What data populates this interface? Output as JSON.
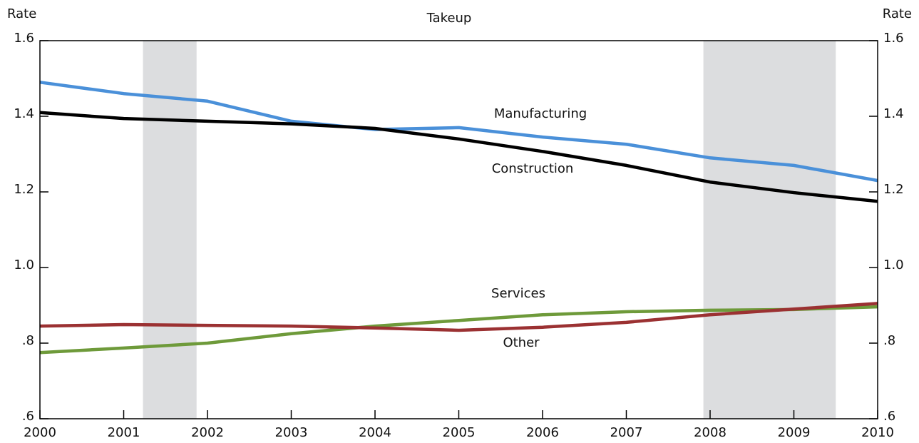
{
  "chart_data": {
    "type": "line",
    "title": "Takeup",
    "y_label": "Rate",
    "y2_label": "Rate",
    "x": [
      2000,
      2001,
      2002,
      2003,
      2004,
      2005,
      2006,
      2007,
      2008,
      2009,
      2010
    ],
    "xlim": [
      2000,
      2010
    ],
    "xticks": [
      2000,
      2001,
      2002,
      2003,
      2004,
      2005,
      2006,
      2007,
      2008,
      2009,
      2010
    ],
    "ylim": [
      0.6,
      1.6
    ],
    "yticks": [
      {
        "value": 0.6,
        "label": ".6"
      },
      {
        "value": 0.8,
        "label": ".8"
      },
      {
        "value": 1.0,
        "label": "1.0"
      },
      1.2,
      1.4,
      1.6
    ],
    "y2lim": [
      0.6,
      1.6
    ],
    "y2ticks": [
      {
        "value": 0.6,
        "label": ".6"
      },
      {
        "value": 0.8,
        "label": ".8"
      },
      {
        "value": 1.0,
        "label": "1.0"
      },
      1.2,
      1.4,
      1.6
    ],
    "shaded_periods": [
      [
        2001.23,
        2001.87
      ],
      [
        2007.92,
        2009.5
      ]
    ],
    "shade_color": "#dcdddf",
    "series": [
      {
        "name": "Manufacturing",
        "color": "#4a90d9",
        "values": [
          1.49,
          1.46,
          1.44,
          1.387,
          1.365,
          1.37,
          1.345,
          1.326,
          1.29,
          1.27,
          1.23
        ]
      },
      {
        "name": "Construction",
        "color": "#000000",
        "values": [
          1.41,
          1.394,
          1.387,
          1.38,
          1.368,
          1.34,
          1.307,
          1.27,
          1.226,
          1.198,
          1.175
        ]
      },
      {
        "name": "Services",
        "color": "#6e9a3a",
        "values": [
          0.775,
          0.787,
          0.8,
          0.825,
          0.845,
          0.86,
          0.875,
          0.883,
          0.887,
          0.889,
          0.896
        ]
      },
      {
        "name": "Other",
        "color": "#9b3132",
        "values": [
          0.845,
          0.849,
          0.847,
          0.845,
          0.84,
          0.834,
          0.842,
          0.855,
          0.875,
          0.89,
          0.905
        ]
      }
    ]
  }
}
